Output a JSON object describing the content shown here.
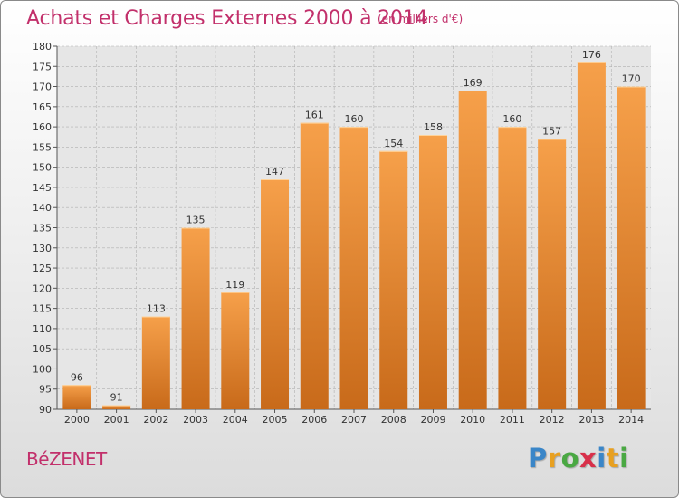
{
  "header": {
    "title": "Achats et Charges Externes 2000 à 2014",
    "unit": "(en milliers d'€)"
  },
  "footer": {
    "commune": "BéZENET",
    "logo_letters": [
      "P",
      "r",
      "o",
      "x",
      "i",
      "t",
      "i"
    ],
    "logo_colors": [
      "#3a86c8",
      "#e8a020",
      "#4aa843",
      "#d8304a",
      "#3a86c8",
      "#e8a020",
      "#4aa843"
    ]
  },
  "chart_data": {
    "type": "bar",
    "title": "Achats et Charges Externes 2000 à 2014",
    "subtitle": "(en milliers d'€)",
    "xlabel": "",
    "ylabel": "",
    "categories": [
      "2000",
      "2001",
      "2002",
      "2003",
      "2004",
      "2005",
      "2006",
      "2007",
      "2008",
      "2009",
      "2010",
      "2011",
      "2012",
      "2013",
      "2014"
    ],
    "values": [
      96,
      91,
      113,
      135,
      119,
      147,
      161,
      160,
      154,
      158,
      169,
      160,
      157,
      176,
      170
    ],
    "ylim": [
      90,
      180
    ],
    "yticks": [
      90,
      95,
      100,
      105,
      110,
      115,
      120,
      125,
      130,
      135,
      140,
      145,
      150,
      155,
      160,
      165,
      170,
      175,
      180
    ],
    "grid": true,
    "legend": "none",
    "colors": {
      "bar_top": "#f6a04a",
      "bar_bottom": "#c86a1a",
      "grid": "#b0b0b0",
      "title": "#c2306b"
    }
  }
}
